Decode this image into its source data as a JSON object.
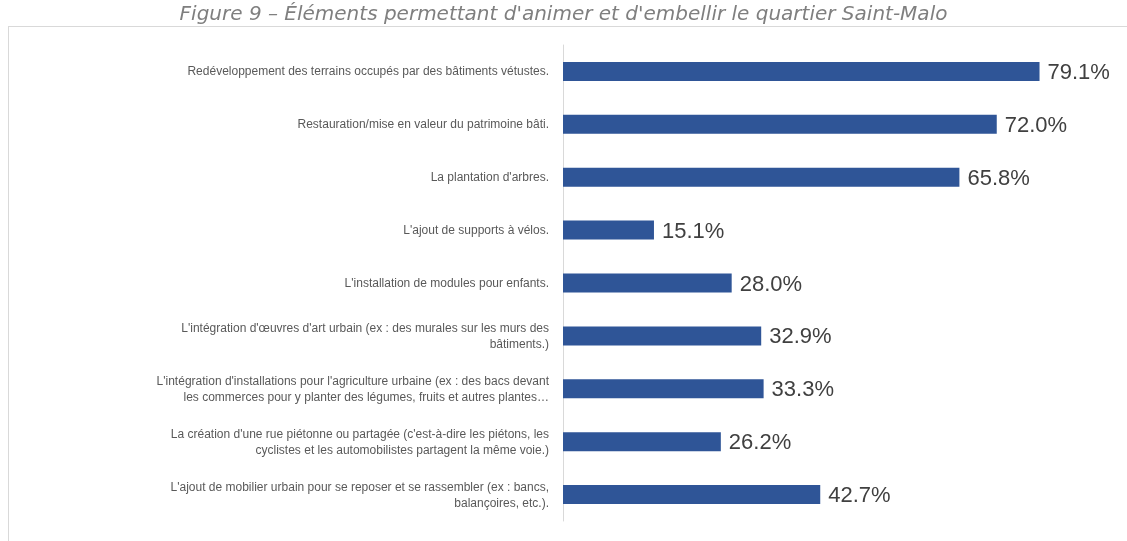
{
  "chart_data": {
    "type": "bar",
    "orientation": "horizontal",
    "title": "Figure 9 – Éléments permettant d'animer et d'embellir le quartier Saint-Malo",
    "categories": [
      "Redéveloppement des terrains occupés par des bâtiments vétustes.",
      "Restauration/mise en valeur du patrimoine bâti.",
      "La plantation d'arbres.",
      "L'ajout de supports à vélos.",
      "L'installation de modules pour enfants.",
      "L'intégration d'œuvres d'art urbain (ex : des murales sur les murs des\nbâtiments.)",
      "L'intégration d'installations pour l'agriculture urbaine (ex : des bacs devant\nles commerces pour y planter des légumes, fruits et autres plantes…",
      "La création d'une rue piétonne ou partagée (c'est-à-dire les piétons, les\ncyclistes et les automobilistes partagent la même voie.)",
      "L'ajout de mobilier urbain pour se reposer et se rassembler (ex : bancs,\nbalançoires, etc.)."
    ],
    "values": [
      79.1,
      72.0,
      65.8,
      15.1,
      28.0,
      32.9,
      33.3,
      26.2,
      42.7
    ],
    "value_labels": [
      "79.1%",
      "72.0%",
      "65.8%",
      "15.1%",
      "28.0%",
      "32.9%",
      "33.3%",
      "26.2%",
      "42.7%"
    ],
    "color": "#2f5597",
    "grid": false
  }
}
